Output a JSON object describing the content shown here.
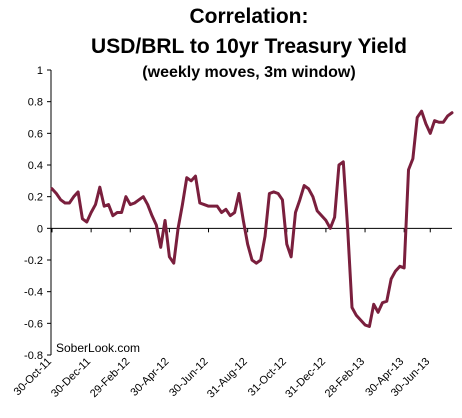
{
  "chart_data": {
    "type": "line",
    "title_line1": "Correlation:",
    "title_line2": "USD/BRL to 10yr Treasury Yield",
    "subtitle": "(weekly moves, 3m window)",
    "watermark": "SoberLook.com",
    "xlabel": "",
    "ylabel": "",
    "ylim": [
      -0.8,
      1
    ],
    "yticks": [
      {
        "value": 1,
        "label": "1"
      },
      {
        "value": 0.8,
        "label": "0.8"
      },
      {
        "value": 0.6,
        "label": "0.6"
      },
      {
        "value": 0.4,
        "label": "0.4"
      },
      {
        "value": 0.2,
        "label": "0.2"
      },
      {
        "value": 0,
        "label": "0"
      },
      {
        "value": -0.2,
        "label": "-0.2"
      },
      {
        "value": -0.4,
        "label": "-0.4"
      },
      {
        "value": -0.6,
        "label": "-0.6"
      },
      {
        "value": -0.8,
        "label": "-0.8"
      }
    ],
    "xticks": [
      "30-Oct-11",
      "30-Dec-11",
      "29-Feb-12",
      "30-Apr-12",
      "30-Jun-12",
      "31-Aug-12",
      "31-Oct-12",
      "31-Dec-12",
      "28-Feb-13",
      "30-Apr-13",
      "30-Jun-13"
    ],
    "grid": false,
    "series": [
      {
        "color": "#7a1f3d",
        "x": [
          "30-Oct-11",
          "6-Nov-11",
          "13-Nov-11",
          "20-Nov-11",
          "27-Nov-11",
          "4-Dec-11",
          "11-Dec-11",
          "18-Dec-11",
          "25-Dec-11",
          "1-Jan-12",
          "8-Jan-12",
          "15-Jan-12",
          "22-Jan-12",
          "29-Jan-12",
          "5-Feb-12",
          "12-Feb-12",
          "19-Feb-12",
          "26-Feb-12",
          "4-Mar-12",
          "11-Mar-12",
          "18-Mar-12",
          "25-Mar-12",
          "1-Apr-12",
          "8-Apr-12",
          "15-Apr-12",
          "22-Apr-12",
          "29-Apr-12",
          "6-May-12",
          "13-May-12",
          "20-May-12",
          "27-May-12",
          "3-Jun-12",
          "10-Jun-12",
          "17-Jun-12",
          "24-Jun-12",
          "1-Jul-12",
          "8-Jul-12",
          "15-Jul-12",
          "22-Jul-12",
          "29-Jul-12",
          "5-Aug-12",
          "12-Aug-12",
          "19-Aug-12",
          "26-Aug-12",
          "2-Sep-12",
          "9-Sep-12",
          "16-Sep-12",
          "23-Sep-12",
          "30-Sep-12",
          "7-Oct-12",
          "14-Oct-12",
          "21-Oct-12",
          "28-Oct-12",
          "4-Nov-12",
          "11-Nov-12",
          "18-Nov-12",
          "25-Nov-12",
          "2-Dec-12",
          "9-Dec-12",
          "16-Dec-12",
          "23-Dec-12",
          "30-Dec-12",
          "6-Jan-13",
          "13-Jan-13",
          "20-Jan-13",
          "27-Jan-13",
          "3-Feb-13",
          "10-Feb-13",
          "17-Feb-13",
          "24-Feb-13",
          "3-Mar-13",
          "10-Mar-13",
          "17-Mar-13",
          "24-Mar-13",
          "31-Mar-13",
          "7-Apr-13",
          "14-Apr-13",
          "21-Apr-13",
          "28-Apr-13",
          "5-May-13",
          "12-May-13",
          "19-May-13",
          "26-May-13",
          "2-Jun-13",
          "9-Jun-13",
          "16-Jun-13",
          "23-Jun-13",
          "30-Jun-13",
          "7-Jul-13",
          "14-Jul-13",
          "21-Jul-13",
          "28-Jul-13",
          "4-Aug-13"
        ],
        "values": [
          0.25,
          0.22,
          0.18,
          0.16,
          0.16,
          0.2,
          0.23,
          0.06,
          0.04,
          0.1,
          0.15,
          0.26,
          0.14,
          0.15,
          0.08,
          0.1,
          0.1,
          0.2,
          0.15,
          0.16,
          0.18,
          0.2,
          0.15,
          0.08,
          0.02,
          -0.12,
          0.05,
          -0.18,
          -0.22,
          0.0,
          0.15,
          0.32,
          0.3,
          0.33,
          0.16,
          0.15,
          0.14,
          0.14,
          0.14,
          0.1,
          0.12,
          0.08,
          0.1,
          0.22,
          0.05,
          -0.1,
          -0.2,
          -0.22,
          -0.2,
          -0.05,
          0.22,
          0.23,
          0.22,
          0.18,
          -0.1,
          -0.18,
          0.1,
          0.18,
          0.27,
          0.25,
          0.2,
          0.11,
          0.08,
          0.05,
          0.0,
          0.07,
          0.4,
          0.42,
          0.0,
          -0.5,
          -0.55,
          -0.58,
          -0.61,
          -0.62,
          -0.48,
          -0.53,
          -0.47,
          -0.46,
          -0.32,
          -0.27,
          -0.24,
          -0.25,
          0.37,
          0.44,
          0.7,
          0.74,
          0.66,
          0.6,
          0.68,
          0.67,
          0.67,
          0.71,
          0.73
        ]
      }
    ]
  }
}
